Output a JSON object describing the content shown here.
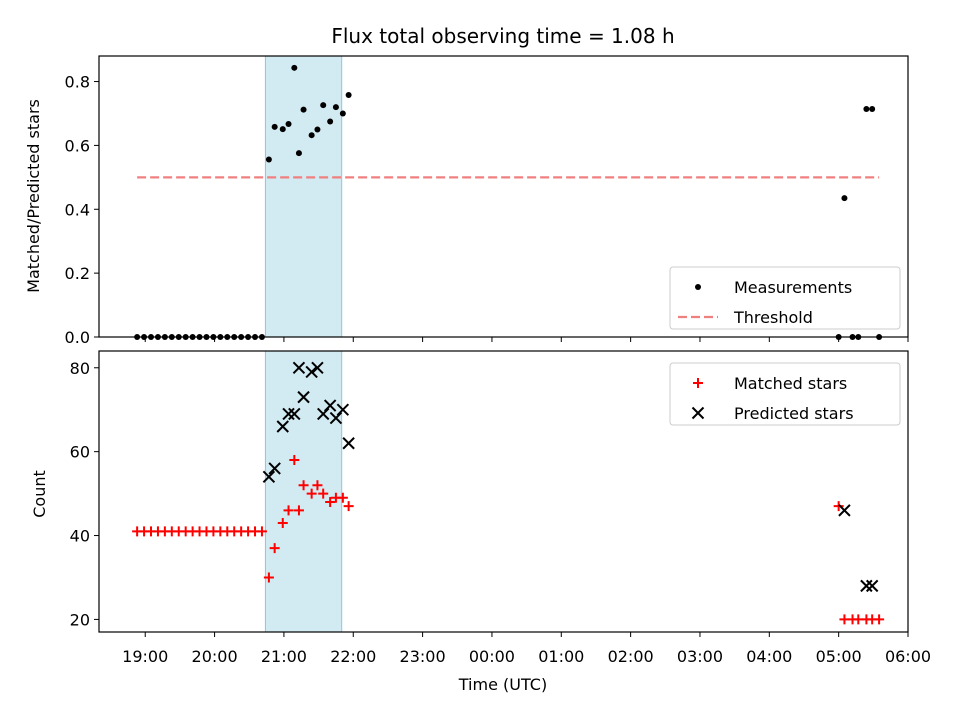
{
  "chart_data": [
    {
      "type": "scatter",
      "title": "Flux total observing time = 1.08 h",
      "xlabel": "",
      "ylabel": "Matched/Predicted stars",
      "xlim": [
        "18:20",
        "06:00"
      ],
      "ylim": [
        0,
        0.88
      ],
      "y_ticks": [
        "0.0",
        "0.2",
        "0.4",
        "0.6",
        "0.8"
      ],
      "legend_position": "lower-right",
      "highlight_span": {
        "x": [
          "20:44",
          "21:50"
        ],
        "color": "#add8e6"
      },
      "series": [
        {
          "name": "Measurements",
          "marker": "dot",
          "color": "#000000",
          "points": [
            [
              "18:53",
              0
            ],
            [
              "18:59",
              0
            ],
            [
              "19:05",
              0
            ],
            [
              "19:11",
              0
            ],
            [
              "19:17",
              0
            ],
            [
              "19:23",
              0
            ],
            [
              "19:29",
              0
            ],
            [
              "19:35",
              0
            ],
            [
              "19:41",
              0
            ],
            [
              "19:47",
              0
            ],
            [
              "19:53",
              0
            ],
            [
              "19:59",
              0
            ],
            [
              "20:05",
              0
            ],
            [
              "20:11",
              0
            ],
            [
              "20:17",
              0
            ],
            [
              "20:23",
              0
            ],
            [
              "20:29",
              0
            ],
            [
              "20:35",
              0
            ],
            [
              "20:41",
              0
            ],
            [
              "20:47",
              0.556
            ],
            [
              "20:52",
              0.658
            ],
            [
              "20:59",
              0.651
            ],
            [
              "21:04",
              0.667
            ],
            [
              "21:09",
              0.843
            ],
            [
              "21:13",
              0.576
            ],
            [
              "21:17",
              0.712
            ],
            [
              "21:24",
              0.632
            ],
            [
              "21:29",
              0.65
            ],
            [
              "21:34",
              0.726
            ],
            [
              "21:40",
              0.675
            ],
            [
              "21:45",
              0.72
            ],
            [
              "21:51",
              0.7
            ],
            [
              "21:56",
              0.758
            ],
            [
              "05:00",
              0
            ],
            [
              "05:05",
              0.435
            ],
            [
              "05:12",
              0
            ],
            [
              "05:17",
              0
            ],
            [
              "05:24",
              0.714
            ],
            [
              "05:29",
              0.714
            ],
            [
              "05:35",
              0
            ]
          ]
        },
        {
          "name": "Threshold",
          "marker": "dashed-line",
          "color": "#f08080",
          "points": [
            [
              "18:53",
              0.5
            ],
            [
              "05:35",
              0.5
            ]
          ]
        }
      ]
    },
    {
      "type": "scatter",
      "xlabel": "Time (UTC)",
      "ylabel": "Count",
      "xlim": [
        "18:20",
        "06:00"
      ],
      "ylim": [
        17,
        84
      ],
      "x_ticks": [
        "19:00",
        "20:00",
        "21:00",
        "22:00",
        "23:00",
        "00:00",
        "01:00",
        "02:00",
        "03:00",
        "04:00",
        "05:00",
        "06:00"
      ],
      "y_ticks": [
        "20",
        "40",
        "60",
        "80"
      ],
      "legend_position": "upper-right",
      "highlight_span": {
        "x": [
          "20:44",
          "21:50"
        ],
        "color": "#add8e6"
      },
      "series": [
        {
          "name": "Matched stars",
          "marker": "plus",
          "color": "#ff0000",
          "points": [
            [
              "18:53",
              41
            ],
            [
              "18:59",
              41
            ],
            [
              "19:05",
              41
            ],
            [
              "19:11",
              41
            ],
            [
              "19:17",
              41
            ],
            [
              "19:23",
              41
            ],
            [
              "19:29",
              41
            ],
            [
              "19:35",
              41
            ],
            [
              "19:41",
              41
            ],
            [
              "19:47",
              41
            ],
            [
              "19:53",
              41
            ],
            [
              "19:59",
              41
            ],
            [
              "20:05",
              41
            ],
            [
              "20:11",
              41
            ],
            [
              "20:17",
              41
            ],
            [
              "20:23",
              41
            ],
            [
              "20:29",
              41
            ],
            [
              "20:35",
              41
            ],
            [
              "20:41",
              41
            ],
            [
              "20:47",
              30
            ],
            [
              "20:52",
              37
            ],
            [
              "20:59",
              43
            ],
            [
              "21:04",
              46
            ],
            [
              "21:09",
              58
            ],
            [
              "21:13",
              46
            ],
            [
              "21:17",
              52
            ],
            [
              "21:24",
              50
            ],
            [
              "21:29",
              52
            ],
            [
              "21:34",
              50
            ],
            [
              "21:40",
              48
            ],
            [
              "21:45",
              49
            ],
            [
              "21:51",
              49
            ],
            [
              "21:56",
              47
            ],
            [
              "05:00",
              47
            ],
            [
              "05:05",
              20
            ],
            [
              "05:12",
              20
            ],
            [
              "05:17",
              20
            ],
            [
              "05:24",
              20
            ],
            [
              "05:29",
              20
            ],
            [
              "05:35",
              20
            ]
          ]
        },
        {
          "name": "Predicted stars",
          "marker": "x",
          "color": "#000000",
          "points": [
            [
              "20:47",
              54
            ],
            [
              "20:52",
              56
            ],
            [
              "20:59",
              66
            ],
            [
              "21:04",
              69
            ],
            [
              "21:09",
              69
            ],
            [
              "21:13",
              80
            ],
            [
              "21:17",
              73
            ],
            [
              "21:24",
              79
            ],
            [
              "21:29",
              80
            ],
            [
              "21:34",
              69
            ],
            [
              "21:40",
              71
            ],
            [
              "21:45",
              68
            ],
            [
              "21:51",
              70
            ],
            [
              "21:56",
              62
            ],
            [
              "05:05",
              46
            ],
            [
              "05:24",
              28
            ],
            [
              "05:29",
              28
            ]
          ]
        }
      ]
    }
  ]
}
